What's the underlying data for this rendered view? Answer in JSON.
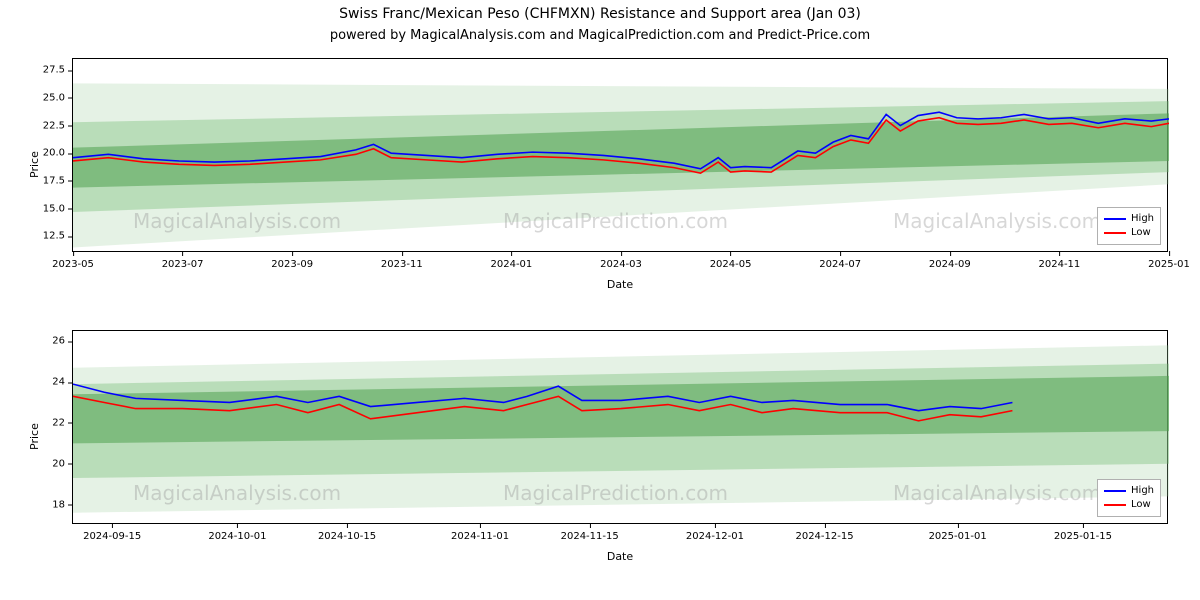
{
  "title": "Swiss Franc/Mexican Peso (CHFMXN) Resistance and Support area (Jan 03)",
  "subtitle": "powered by MagicalAnalysis.com and MagicalPrediction.com and Predict-Price.com",
  "watermarks": [
    "MagicalAnalysis.com",
    "MagicalPrediction.com"
  ],
  "legend": {
    "high": "High",
    "low": "Low"
  },
  "colors": {
    "high": "#0000ff",
    "low": "#ff0000",
    "band_inner": "rgba(80,160,80,0.55)",
    "band_mid": "rgba(120,190,120,0.40)",
    "band_outer": "rgba(160,210,160,0.28)",
    "border": "#000000",
    "text": "#000000"
  },
  "top": {
    "xlabel": "Date",
    "ylabel": "Price",
    "ylim": [
      11,
      28.5
    ],
    "yticks": [
      12.5,
      15.0,
      17.5,
      20.0,
      22.5,
      25.0,
      27.5
    ],
    "ytick_labels": [
      "12.5",
      "15.0",
      "17.5",
      "20.0",
      "22.5",
      "25.0",
      "27.5"
    ],
    "xlim": [
      0,
      620
    ],
    "xticks": [
      0,
      62,
      124,
      186,
      248,
      310,
      372,
      434,
      496,
      558,
      620
    ],
    "xtick_labels": [
      "2023-05",
      "2023-07",
      "2023-09",
      "2023-11",
      "2024-01",
      "2024-03",
      "2024-05",
      "2024-07",
      "2024-09",
      "2024-11",
      "2025-01"
    ],
    "bands": {
      "outer": {
        "x": [
          0,
          620
        ],
        "lo": [
          11.5,
          17.2
        ],
        "hi": [
          26.3,
          25.8
        ]
      },
      "mid": {
        "x": [
          0,
          620
        ],
        "lo": [
          14.7,
          18.3
        ],
        "hi": [
          22.8,
          24.7
        ]
      },
      "inner": {
        "x": [
          0,
          620
        ],
        "lo": [
          16.9,
          19.3
        ],
        "hi": [
          20.5,
          23.6
        ]
      }
    },
    "high": [
      [
        0,
        19.6
      ],
      [
        20,
        19.9
      ],
      [
        40,
        19.5
      ],
      [
        60,
        19.3
      ],
      [
        80,
        19.2
      ],
      [
        100,
        19.3
      ],
      [
        120,
        19.5
      ],
      [
        140,
        19.7
      ],
      [
        160,
        20.3
      ],
      [
        170,
        20.8
      ],
      [
        180,
        20.0
      ],
      [
        200,
        19.8
      ],
      [
        220,
        19.6
      ],
      [
        240,
        19.9
      ],
      [
        260,
        20.1
      ],
      [
        280,
        20.0
      ],
      [
        300,
        19.8
      ],
      [
        320,
        19.5
      ],
      [
        340,
        19.1
      ],
      [
        355,
        18.6
      ],
      [
        365,
        19.6
      ],
      [
        372,
        18.7
      ],
      [
        380,
        18.8
      ],
      [
        395,
        18.7
      ],
      [
        410,
        20.2
      ],
      [
        420,
        20.0
      ],
      [
        430,
        21.0
      ],
      [
        440,
        21.6
      ],
      [
        450,
        21.3
      ],
      [
        460,
        23.5
      ],
      [
        468,
        22.5
      ],
      [
        478,
        23.4
      ],
      [
        490,
        23.7
      ],
      [
        500,
        23.2
      ],
      [
        512,
        23.1
      ],
      [
        525,
        23.2
      ],
      [
        538,
        23.5
      ],
      [
        552,
        23.1
      ],
      [
        565,
        23.2
      ],
      [
        580,
        22.7
      ],
      [
        595,
        23.1
      ],
      [
        610,
        22.9
      ],
      [
        620,
        23.1
      ]
    ],
    "low": [
      [
        0,
        19.3
      ],
      [
        20,
        19.6
      ],
      [
        40,
        19.2
      ],
      [
        60,
        19.0
      ],
      [
        80,
        18.9
      ],
      [
        100,
        19.0
      ],
      [
        120,
        19.2
      ],
      [
        140,
        19.4
      ],
      [
        160,
        19.9
      ],
      [
        170,
        20.4
      ],
      [
        180,
        19.6
      ],
      [
        200,
        19.4
      ],
      [
        220,
        19.2
      ],
      [
        240,
        19.5
      ],
      [
        260,
        19.7
      ],
      [
        280,
        19.6
      ],
      [
        300,
        19.4
      ],
      [
        320,
        19.1
      ],
      [
        340,
        18.7
      ],
      [
        355,
        18.2
      ],
      [
        365,
        19.2
      ],
      [
        372,
        18.3
      ],
      [
        380,
        18.4
      ],
      [
        395,
        18.3
      ],
      [
        410,
        19.8
      ],
      [
        420,
        19.6
      ],
      [
        430,
        20.6
      ],
      [
        440,
        21.2
      ],
      [
        450,
        20.9
      ],
      [
        460,
        23.0
      ],
      [
        468,
        22.0
      ],
      [
        478,
        22.9
      ],
      [
        490,
        23.2
      ],
      [
        500,
        22.7
      ],
      [
        512,
        22.6
      ],
      [
        525,
        22.7
      ],
      [
        538,
        23.0
      ],
      [
        552,
        22.6
      ],
      [
        565,
        22.7
      ],
      [
        580,
        22.3
      ],
      [
        595,
        22.7
      ],
      [
        610,
        22.4
      ],
      [
        620,
        22.7
      ]
    ]
  },
  "bottom": {
    "xlabel": "Date",
    "ylabel": "Price",
    "ylim": [
      17,
      26.5
    ],
    "yticks": [
      18,
      20,
      22,
      24,
      26
    ],
    "ytick_labels": [
      "18",
      "20",
      "22",
      "24",
      "26"
    ],
    "xlim": [
      0,
      140
    ],
    "xticks": [
      5,
      21,
      35,
      52,
      66,
      82,
      96,
      113,
      129
    ],
    "xtick_labels": [
      "2024-09-15",
      "2024-10-01",
      "2024-10-15",
      "2024-11-01",
      "2024-11-15",
      "2024-12-01",
      "2024-12-15",
      "2025-01-01",
      "2025-01-15"
    ],
    "bands": {
      "outer": {
        "x": [
          0,
          140
        ],
        "lo": [
          17.6,
          18.4
        ],
        "hi": [
          24.7,
          25.8
        ]
      },
      "mid": {
        "x": [
          0,
          140
        ],
        "lo": [
          19.3,
          20.0
        ],
        "hi": [
          23.9,
          24.9
        ]
      },
      "inner": {
        "x": [
          0,
          140
        ],
        "lo": [
          21.0,
          21.6
        ],
        "hi": [
          23.4,
          24.3
        ]
      }
    },
    "high": [
      [
        0,
        23.9
      ],
      [
        4,
        23.5
      ],
      [
        8,
        23.2
      ],
      [
        14,
        23.1
      ],
      [
        20,
        23.0
      ],
      [
        26,
        23.3
      ],
      [
        30,
        23.0
      ],
      [
        34,
        23.3
      ],
      [
        38,
        22.8
      ],
      [
        44,
        23.0
      ],
      [
        50,
        23.2
      ],
      [
        55,
        23.0
      ],
      [
        58,
        23.3
      ],
      [
        62,
        23.8
      ],
      [
        65,
        23.1
      ],
      [
        70,
        23.1
      ],
      [
        76,
        23.3
      ],
      [
        80,
        23.0
      ],
      [
        84,
        23.3
      ],
      [
        88,
        23.0
      ],
      [
        92,
        23.1
      ],
      [
        98,
        22.9
      ],
      [
        104,
        22.9
      ],
      [
        108,
        22.6
      ],
      [
        112,
        22.8
      ],
      [
        116,
        22.7
      ],
      [
        120,
        23.0
      ]
    ],
    "low": [
      [
        0,
        23.3
      ],
      [
        4,
        23.0
      ],
      [
        8,
        22.7
      ],
      [
        14,
        22.7
      ],
      [
        20,
        22.6
      ],
      [
        26,
        22.9
      ],
      [
        30,
        22.5
      ],
      [
        34,
        22.9
      ],
      [
        38,
        22.2
      ],
      [
        44,
        22.5
      ],
      [
        50,
        22.8
      ],
      [
        55,
        22.6
      ],
      [
        58,
        22.9
      ],
      [
        62,
        23.3
      ],
      [
        65,
        22.6
      ],
      [
        70,
        22.7
      ],
      [
        76,
        22.9
      ],
      [
        80,
        22.6
      ],
      [
        84,
        22.9
      ],
      [
        88,
        22.5
      ],
      [
        92,
        22.7
      ],
      [
        98,
        22.5
      ],
      [
        104,
        22.5
      ],
      [
        108,
        22.1
      ],
      [
        112,
        22.4
      ],
      [
        116,
        22.3
      ],
      [
        120,
        22.6
      ]
    ]
  }
}
